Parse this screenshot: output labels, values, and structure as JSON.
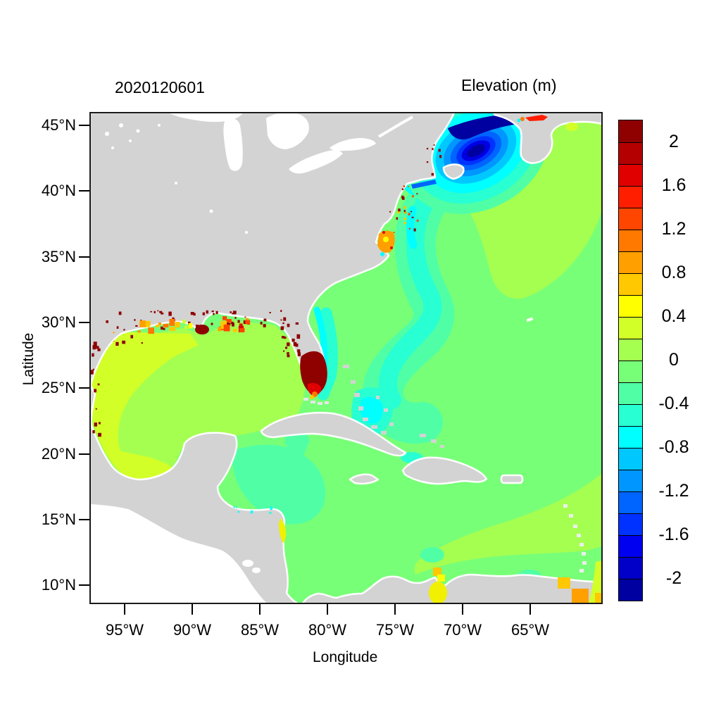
{
  "page": {
    "background": "#ffffff"
  },
  "chart": {
    "title": "2020120601",
    "colorbar_title": "Elevation (m)",
    "xlabel": "Longitude",
    "ylabel": "Latitude"
  },
  "chart_data": {
    "type": "heatmap",
    "title": "2020120601",
    "colorbar_title": "Elevation (m)",
    "xlabel": "Longitude",
    "ylabel": "Latitude",
    "x_ticks": [
      "95°W",
      "90°W",
      "85°W",
      "80°W",
      "75°W",
      "70°W",
      "65°W"
    ],
    "x_tick_lon_w": [
      95,
      90,
      85,
      80,
      75,
      70,
      65
    ],
    "y_ticks": [
      "45°N",
      "40°N",
      "35°N",
      "30°N",
      "25°N",
      "20°N",
      "15°N",
      "10°N"
    ],
    "y_tick_lat_n": [
      45,
      40,
      35,
      30,
      25,
      20,
      15,
      10
    ],
    "lon_range_deg_w": [
      97.5,
      59.7
    ],
    "lat_range_deg_n": [
      8.7,
      46.0
    ],
    "grid": false,
    "colorbar": {
      "orientation": "vertical",
      "labels": [
        "2",
        "1.6",
        "1.2",
        "0.8",
        "0.4",
        "0",
        "-0.4",
        "-0.8",
        "-1.2",
        "-1.6",
        "-2"
      ],
      "label_values": [
        2,
        1.6,
        1.2,
        0.8,
        0.4,
        0,
        -0.4,
        -0.8,
        -1.2,
        -1.6,
        -2
      ],
      "cell_edges_top_to_bottom": [
        2.2,
        2.0,
        1.8,
        1.6,
        1.4,
        1.2,
        1.0,
        0.8,
        0.6,
        0.4,
        0.2,
        0.0,
        -0.2,
        -0.4,
        -0.6,
        -0.8,
        -1.0,
        -1.2,
        -1.4,
        -1.6,
        -1.8,
        -2.0,
        -2.2
      ],
      "colors_top_to_bottom": [
        "#8F0000",
        "#B40000",
        "#E10000",
        "#FF1E00",
        "#FF4600",
        "#FF7800",
        "#FFA000",
        "#FFC800",
        "#FFFF00",
        "#D2FF28",
        "#A5FF50",
        "#78FF78",
        "#50FFA5",
        "#28FFD2",
        "#00FFFF",
        "#00C8FF",
        "#0096FF",
        "#0064FF",
        "#0032FF",
        "#0000F0",
        "#0000C8",
        "#0000A0"
      ]
    },
    "palette": {
      "land": "#D3D3D3",
      "no_data": "#FFFFFF",
      "frame": "#1a1a1a"
    },
    "regions": [
      {
        "name": "atlantic-open-ocean",
        "elevation_m": "-0.2 to 0"
      },
      {
        "name": "northeast-atlantic-sector",
        "elevation_m": "0 to 0.2"
      },
      {
        "name": "gulf-of-mexico-interior",
        "elevation_m": "0 to 0.2"
      },
      {
        "name": "western-gulf-shelf",
        "elevation_m": "0.2 to 0.4"
      },
      {
        "name": "us-east-coast-shelf-band",
        "elevation_m": "-0.8 to -0.4"
      },
      {
        "name": "gulf-of-maine-bay-of-fundy",
        "elevation_m": "-2.2 to -0.8"
      },
      {
        "name": "southwest-florida-coast",
        "elevation_m": "2.0 to 2.2+"
      },
      {
        "name": "louisiana-mississippi-coast",
        "elevation_m": "0.8 to 2.2"
      },
      {
        "name": "pamlico-sound-north-carolina",
        "elevation_m": "0.8 to 1.0"
      },
      {
        "name": "western-caribbean",
        "elevation_m": "-0.4 to -0.2"
      },
      {
        "name": "southern-caribbean-venezuela-coast",
        "elevation_m": "0.2 to 0.8"
      },
      {
        "name": "lake-maracaibo",
        "elevation_m": "0.4 to 0.6"
      }
    ]
  }
}
